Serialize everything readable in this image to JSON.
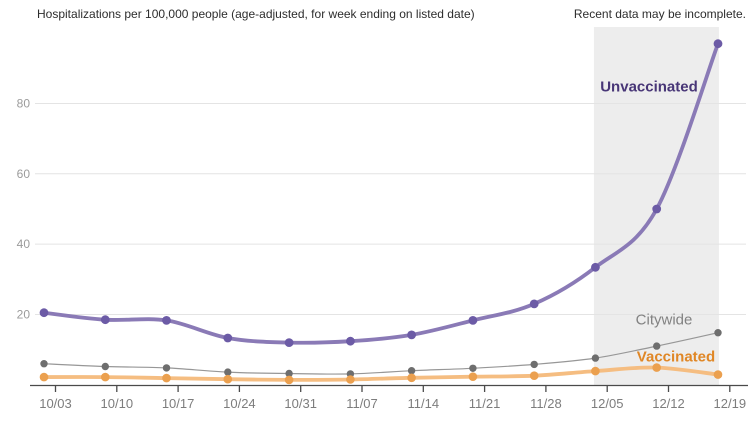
{
  "header": {
    "title": "Hospitalizations per 100,000 people (age-adjusted, for week ending on listed date)",
    "note": "Recent data may be incomplete."
  },
  "chart_data": {
    "type": "line",
    "title": "Hospitalizations per 100,000 people (age-adjusted, for week ending on listed date)",
    "note": "Recent data may be incomplete.",
    "categories": [
      "10/03",
      "10/10",
      "10/17",
      "10/24",
      "10/31",
      "11/07",
      "11/14",
      "11/21",
      "11/28",
      "12/05",
      "12/12",
      "12/19"
    ],
    "series": [
      {
        "name": "Unvaccinated",
        "color": "#8a7ab6",
        "dot_color": "#6c5ba6",
        "label_color": "#483677",
        "values": [
          20.5,
          18.5,
          18.3,
          13.3,
          12.0,
          12.4,
          14.2,
          18.3,
          23.0,
          33.4,
          50.0,
          97.0
        ]
      },
      {
        "name": "Citywide",
        "color": "#979797",
        "dot_color": "#6e6e6e",
        "label_color": "#828282",
        "values": [
          6.0,
          5.2,
          4.8,
          3.6,
          3.2,
          3.1,
          4.0,
          4.7,
          5.8,
          7.6,
          11.0,
          14.8
        ]
      },
      {
        "name": "Vaccinated",
        "color": "#f5bd81",
        "dot_color": "#eba04f",
        "label_color": "#e08726",
        "values": [
          2.2,
          2.2,
          1.9,
          1.6,
          1.4,
          1.5,
          2.0,
          2.3,
          2.6,
          3.9,
          4.9,
          2.9
        ]
      }
    ],
    "ylim": [
      0,
      100
    ],
    "yticks": [
      20,
      40,
      60,
      80
    ],
    "grid": true,
    "legend_position": "inline-annotations",
    "shaded_region": {
      "from_category": "12/05",
      "to_category": "12/19"
    }
  },
  "colors": {
    "background": "#ffffff",
    "shade": "#ededed",
    "grid": "#e4e4e4",
    "axis": "#4a4a4a",
    "date_labels": "#7d7d7d",
    "y_labels": "#9b9b9b",
    "title_text": "#2d2d2d"
  }
}
